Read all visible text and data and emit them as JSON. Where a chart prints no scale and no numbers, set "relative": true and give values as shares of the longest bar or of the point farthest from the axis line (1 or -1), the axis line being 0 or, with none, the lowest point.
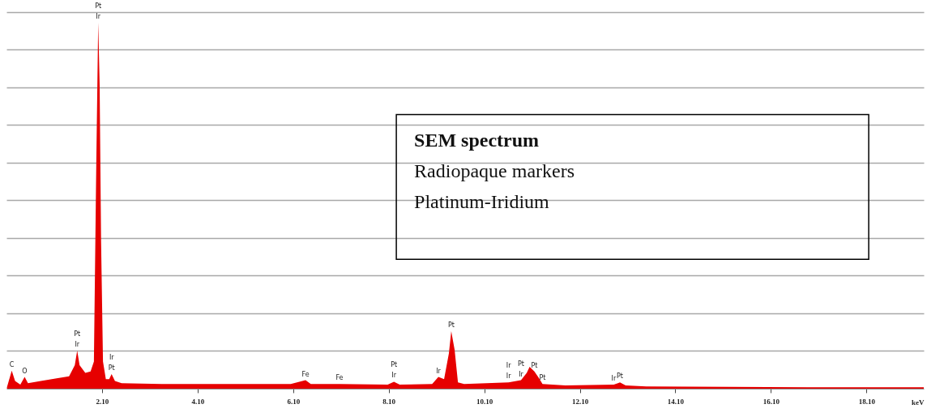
{
  "chart_data": {
    "type": "area",
    "relative": true,
    "title": "SEM spectrum",
    "xlabel": "keV",
    "grid": "y",
    "annotations": [
      "Radiopaque markers",
      "Platinum-Iridium",
      {
        "text": "Ir",
        "x": 2.02,
        "y": 1
      },
      {
        "text": "Pt",
        "x": 2.02,
        "y": 1
      },
      {
        "text": "Ir",
        "x": 1.58,
        "y": 0.104
      },
      {
        "text": "Pt",
        "x": 1.58,
        "y": 0.104
      },
      {
        "text": "Pt",
        "x": 2.3,
        "y": 0.04
      },
      {
        "text": "Ir",
        "x": 2.3,
        "y": 0.04
      },
      {
        "text": "C",
        "x": 0.21,
        "y": 0.049
      },
      {
        "text": "O",
        "x": 0.48,
        "y": 0.032
      },
      {
        "text": "Fe",
        "x": 6.36,
        "y": 0.023
      },
      {
        "text": "Fe",
        "x": 7.07,
        "y": 0.013
      },
      {
        "text": "Ir",
        "x": 8.21,
        "y": 0.019
      },
      {
        "text": "Pt",
        "x": 8.21,
        "y": 0.019
      },
      {
        "text": "Ir",
        "x": 9.14,
        "y": 0.032
      },
      {
        "text": "Pt",
        "x": 9.41,
        "y": 0.157
      },
      {
        "text": "Ir",
        "x": 10.61,
        "y": 0.017
      },
      {
        "text": "Ir",
        "x": 10.61,
        "y": 0.017
      },
      {
        "text": "Ir",
        "x": 10.87,
        "y": 0.023
      },
      {
        "text": "Pt",
        "x": 10.87,
        "y": 0.023
      },
      {
        "text": "Pt",
        "x": 11.15,
        "y": 0.047
      },
      {
        "text": "Pt",
        "x": 11.32,
        "y": 0.013
      },
      {
        "text": "Ir",
        "x": 12.81,
        "y": 0.011
      },
      {
        "text": "Pt",
        "x": 12.94,
        "y": 0.017
      }
    ],
    "x": [
      0.11,
      0.21,
      0.28,
      0.39,
      0.48,
      0.55,
      0.82,
      1.15,
      1.41,
      1.53,
      1.58,
      1.63,
      1.75,
      1.86,
      1.93,
      1.98,
      2.02,
      2.05,
      2.08,
      2.12,
      2.18,
      2.25,
      2.3,
      2.37,
      2.51,
      3.35,
      5.04,
      6.05,
      6.36,
      6.47,
      7.07,
      8.08,
      8.21,
      8.33,
      9.01,
      9.14,
      9.26,
      9.36,
      9.41,
      9.48,
      9.55,
      9.68,
      10.61,
      10.87,
      10.99,
      11.05,
      11.15,
      11.24,
      11.32,
      11.8,
      12.81,
      12.94,
      13.06,
      13.49,
      16.86,
      19.3
    ],
    "series": [
      {
        "color": "#e60000",
        "values": [
          0.004,
          0.049,
          0.021,
          0.011,
          0.032,
          0.015,
          0.021,
          0.028,
          0.034,
          0.064,
          0.104,
          0.064,
          0.043,
          0.047,
          0.074,
          0.617,
          1,
          0.83,
          0.404,
          0.074,
          0.026,
          0.026,
          0.04,
          0.021,
          0.015,
          0.013,
          0.013,
          0.013,
          0.023,
          0.013,
          0.013,
          0.011,
          0.019,
          0.011,
          0.013,
          0.032,
          0.026,
          0.096,
          0.157,
          0.106,
          0.017,
          0.013,
          0.017,
          0.023,
          0.043,
          0.06,
          0.047,
          0.03,
          0.013,
          0.009,
          0.011,
          0.017,
          0.009,
          0.006,
          0.004,
          0.004
        ]
      }
    ],
    "xlim": [
      0.1,
      19.3
    ],
    "xticks": [
      {
        "value": 2.1,
        "label": "2.10"
      },
      {
        "value": 4.1,
        "label": "4.10"
      },
      {
        "value": 6.1,
        "label": "6.10"
      },
      {
        "value": 8.1,
        "label": "8.10"
      },
      {
        "value": 10.1,
        "label": "10.10"
      },
      {
        "value": 12.1,
        "label": "12.10"
      },
      {
        "value": 14.1,
        "label": "14.10"
      },
      {
        "value": 16.1,
        "label": "16.10"
      },
      {
        "value": 18.1,
        "label": "18.10"
      }
    ]
  }
}
